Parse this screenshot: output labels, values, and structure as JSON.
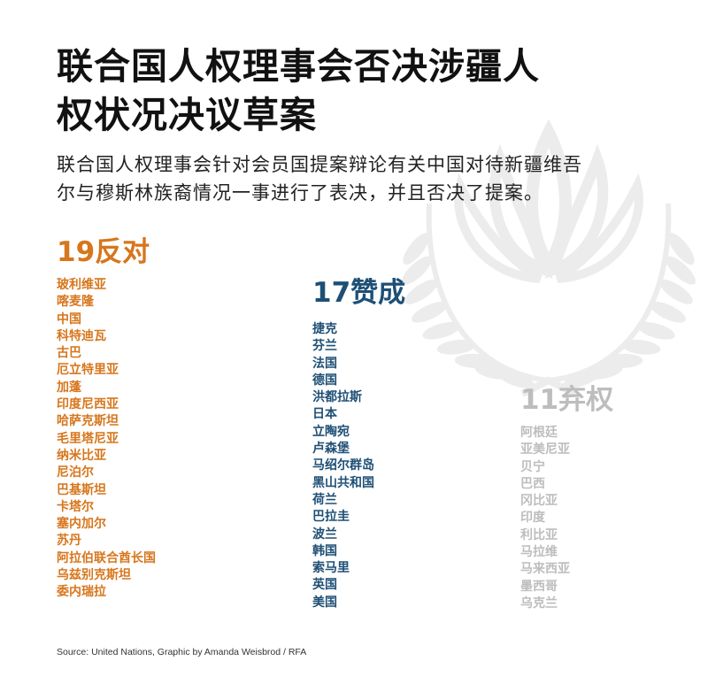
{
  "title": "联合国人权理事会否决涉疆人权状况决议草案",
  "title_lines": [
    "联合国人权理事会否决涉疆人",
    "权状况决议草案"
  ],
  "subtitle_lines": [
    "联合国人权理事会针对会员国提案辩论有关中国对待新疆维吾",
    "尔与穆斯林族裔情况一事进行了表决，并且否决了提案。"
  ],
  "source": "Source: United Nations, Graphic by Amanda Weisbrod / RFA",
  "colors": {
    "against": "#d7761c",
    "favor": "#1e4f75",
    "abstain": "#bdbdbd",
    "emblem": "#ececec"
  },
  "chart_data": {
    "type": "table",
    "title": "联合国人权理事会否决涉疆人权状况决议草案",
    "groups": [
      {
        "heading": "19反对",
        "count": 19,
        "members": [
          "玻利维亚",
          "喀麦隆",
          "中国",
          "科特迪瓦",
          "古巴",
          "厄立特里亚",
          "加蓬",
          "印度尼西亚",
          "哈萨克斯坦",
          "毛里塔尼亚",
          "纳米比亚",
          "尼泊尔",
          "巴基斯坦",
          "卡塔尔",
          "塞内加尔",
          "苏丹",
          "阿拉伯联合酋长国",
          "乌兹别克斯坦",
          "委内瑞拉"
        ]
      },
      {
        "heading": "17赞成",
        "count": 17,
        "members": [
          "捷克",
          "芬兰",
          "法国",
          "德国",
          "洪都拉斯",
          "日本",
          "立陶宛",
          "卢森堡",
          "马绍尔群岛",
          "黑山共和国",
          "荷兰",
          "巴拉圭",
          "波兰",
          "韩国",
          "索马里",
          "英国",
          "美国"
        ]
      },
      {
        "heading": "11弃权",
        "count": 11,
        "members": [
          "阿根廷",
          "亚美尼亚",
          "贝宁",
          "巴西",
          "冈比亚",
          "印度",
          "利比亚",
          "马拉维",
          "马来西亚",
          "墨西哥",
          "乌克兰"
        ]
      }
    ]
  }
}
